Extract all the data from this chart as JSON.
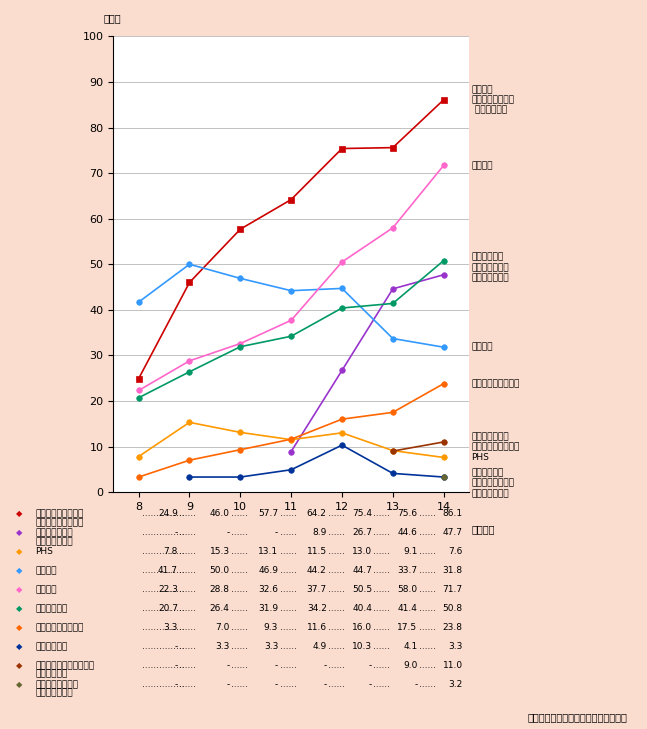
{
  "background_color": "#FBDDD0",
  "plot_bg_color": "#FFFFFF",
  "years": [
    8,
    9,
    10,
    11,
    12,
    13,
    14
  ],
  "series": [
    {
      "name": "携帯電話（インターネット対応型含む）",
      "color": "#CC0000",
      "marker": "s",
      "values": [
        24.9,
        46.0,
        57.7,
        64.2,
        75.4,
        75.6,
        86.1
      ]
    },
    {
      "name": "インターネット対応型携帯電話",
      "color": "#9933CC",
      "marker": "o",
      "values": [
        null,
        null,
        null,
        8.9,
        26.7,
        44.6,
        47.7
      ]
    },
    {
      "name": "PHS",
      "color": "#FF9900",
      "marker": "o",
      "values": [
        7.8,
        15.3,
        13.1,
        11.5,
        13.0,
        9.1,
        7.6
      ]
    },
    {
      "name": "ワープロ",
      "color": "#3399FF",
      "marker": "o",
      "values": [
        41.7,
        50.0,
        46.9,
        44.2,
        44.7,
        33.7,
        31.8
      ]
    },
    {
      "name": "パソコン",
      "color": "#FF66CC",
      "marker": "o",
      "values": [
        22.3,
        28.8,
        32.6,
        37.7,
        50.5,
        58.0,
        71.7
      ]
    },
    {
      "name": "ファクシミリ",
      "color": "#009966",
      "marker": "o",
      "values": [
        20.7,
        26.4,
        31.9,
        34.2,
        40.4,
        41.4,
        50.8
      ]
    },
    {
      "name": "カーナビゲーション",
      "color": "#FF6600",
      "marker": "o",
      "values": [
        3.3,
        7.0,
        9.3,
        11.6,
        16.0,
        17.5,
        23.8
      ]
    },
    {
      "name": "携帯情報端末",
      "color": "#003399",
      "marker": "o",
      "values": [
        null,
        3.3,
        3.3,
        4.9,
        10.3,
        4.1,
        3.3
      ]
    },
    {
      "name": "インターネット対応型テレビゲーム",
      "color": "#993300",
      "marker": "o",
      "values": [
        null,
        null,
        null,
        null,
        null,
        9.0,
        11.0
      ]
    },
    {
      "name": "インターネットに接続できる家電",
      "color": "#666633",
      "marker": "o",
      "values": [
        null,
        null,
        null,
        null,
        null,
        null,
        3.2
      ]
    }
  ],
  "right_labels": [
    {
      "text": "携帯電話\n（インターネット\n 対応型含む）",
      "y": 86.1
    },
    {
      "text": "パソコン",
      "y": 71.7
    },
    {
      "text": "ファクシミリ\nインターネット\n対応型携帯電話",
      "y": 49.3
    },
    {
      "text": "ワープロ",
      "y": 31.8
    },
    {
      "text": "カーナビゲーション",
      "y": 23.8
    },
    {
      "text": "インターネット\n対応型テレビゲーム",
      "y": 11.0
    },
    {
      "text": "PHS",
      "y": 7.6
    },
    {
      "text": "携帯情報端末\nインターネットに\n接続できる家電",
      "y": 2.0
    }
  ],
  "legend_data": [
    {
      "label": "携帯電話（インター",
      "label2": "ネット対応型含む）",
      "color": "#CC0000",
      "marker": "s",
      "vals": [
        "24.9",
        "46.0",
        "57.7",
        "64.2",
        "75.4",
        "75.6",
        "86.1"
      ]
    },
    {
      "label": "インターネット",
      "label2": "対応型携帯電話",
      "color": "#9933CC",
      "marker": "o",
      "vals": [
        "-",
        "-",
        "-",
        "8.9",
        "26.7",
        "44.6",
        "47.7"
      ]
    },
    {
      "label": "PHS",
      "label2": "",
      "color": "#FF9900",
      "marker": "o",
      "vals": [
        "7.8",
        "15.3",
        "13.1",
        "11.5",
        "13.0",
        "9.1",
        "7.6"
      ]
    },
    {
      "label": "ワープロ",
      "label2": "",
      "color": "#3399FF",
      "marker": "o",
      "vals": [
        "41.7",
        "50.0",
        "46.9",
        "44.2",
        "44.7",
        "33.7",
        "31.8"
      ]
    },
    {
      "label": "パソコン",
      "label2": "",
      "color": "#FF66CC",
      "marker": "o",
      "vals": [
        "22.3",
        "28.8",
        "32.6",
        "37.7",
        "50.5",
        "58.0",
        "71.7"
      ]
    },
    {
      "label": "ファクシミリ",
      "label2": "",
      "color": "#009966",
      "marker": "o",
      "vals": [
        "20.7",
        "26.4",
        "31.9",
        "34.2",
        "40.4",
        "41.4",
        "50.8"
      ]
    },
    {
      "label": "カーナビゲーション",
      "label2": "",
      "color": "#FF6600",
      "marker": "o",
      "vals": [
        "3.3",
        "7.0",
        "9.3",
        "11.6",
        "16.0",
        "17.5",
        "23.8"
      ]
    },
    {
      "label": "携帯情報端末",
      "label2": "",
      "color": "#003399",
      "marker": "o",
      "vals": [
        "-",
        "3.3",
        "3.3",
        "4.9",
        "10.3",
        "4.1",
        "3.3"
      ]
    },
    {
      "label": "インターネット対応型・",
      "label2": "テレビゲーム",
      "color": "#993300",
      "marker": "o",
      "vals": [
        "-",
        "-",
        "-",
        "-",
        "-",
        "9.0",
        "11.0"
      ]
    },
    {
      "label": "インターネットに",
      "label2": "接続できる家電",
      "color": "#666633",
      "marker": "o",
      "vals": [
        "-",
        "-",
        "-",
        "-",
        "-",
        "-",
        "3.2"
      ]
    }
  ],
  "ylim": [
    0,
    100
  ],
  "ylabel_unit": "（％）",
  "xlabel_unit": "（年末）",
  "source": "（出典）総務省「通信利用動向調査」"
}
